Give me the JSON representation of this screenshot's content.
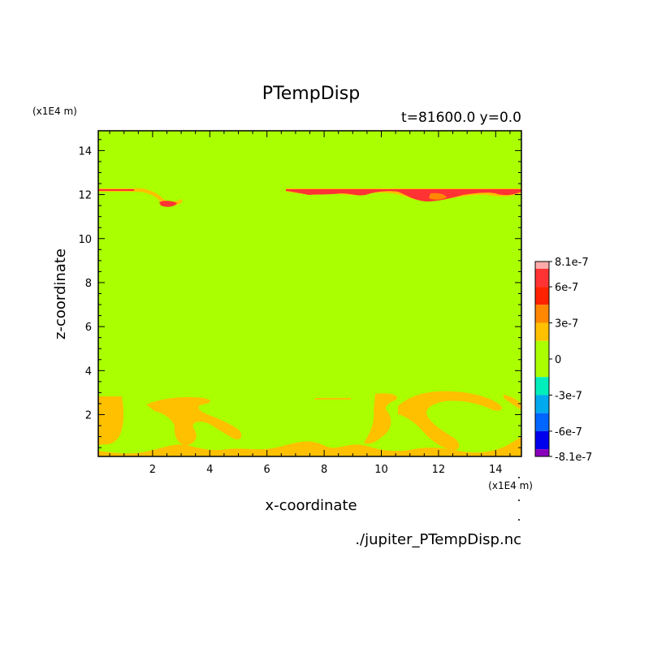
{
  "chart_data": {
    "type": "heatmap",
    "title": "PTempDisp",
    "subtitle": "t=81600.0 y=0.0",
    "xlabel": "x-coordinate",
    "ylabel": "z-coordinate",
    "x_unit": "(x1E4 m)",
    "y_unit": "(x1E4 m)",
    "source_file": "./jupiter_PTempDisp.nc",
    "xlim": [
      0.1,
      14.9
    ],
    "ylim": [
      0.1,
      14.9
    ],
    "x_ticks": [
      2,
      4,
      6,
      8,
      10,
      12,
      14
    ],
    "y_ticks": [
      2,
      4,
      6,
      8,
      10,
      12,
      14
    ],
    "x_tick_labels": [
      "2",
      "4",
      "6",
      "8",
      "10",
      "12",
      "14"
    ],
    "y_tick_labels": [
      "2",
      "4",
      "6",
      "8",
      "10",
      "12",
      "14"
    ],
    "background_level_color": "#aaff00",
    "colorbar": {
      "labels": [
        "8.1e-7",
        "6e-7",
        "3e-7",
        "0",
        "-3e-7",
        "-6e-7",
        "-8.1e-7"
      ],
      "label_values": [
        8.1e-07,
        6e-07,
        3e-07,
        0,
        -3e-07,
        -6e-07,
        -8.1e-07
      ],
      "levels": [
        {
          "min": 7.5e-07,
          "max": 8.1e-07,
          "color": "#ffaaaa"
        },
        {
          "min": 6e-07,
          "max": 7.5e-07,
          "color": "#ff3333"
        },
        {
          "min": 4.5e-07,
          "max": 6e-07,
          "color": "#ff2200"
        },
        {
          "min": 3e-07,
          "max": 4.5e-07,
          "color": "#ff8800"
        },
        {
          "min": 1.5e-07,
          "max": 3e-07,
          "color": "#ffc000"
        },
        {
          "min": 0,
          "max": 1.5e-07,
          "color": "#aaff00"
        },
        {
          "min": -1.5e-07,
          "max": 0,
          "color": "#aaff00"
        },
        {
          "min": -3e-07,
          "max": -1.5e-07,
          "color": "#00eebb"
        },
        {
          "min": -4.5e-07,
          "max": -3e-07,
          "color": "#00aaee"
        },
        {
          "min": -6e-07,
          "max": -4.5e-07,
          "color": "#0066ff"
        },
        {
          "min": -7.5e-07,
          "max": -6e-07,
          "color": "#0000ee"
        },
        {
          "min": -8.1e-07,
          "max": -7.5e-07,
          "color": "#8800bb"
        }
      ]
    }
  }
}
